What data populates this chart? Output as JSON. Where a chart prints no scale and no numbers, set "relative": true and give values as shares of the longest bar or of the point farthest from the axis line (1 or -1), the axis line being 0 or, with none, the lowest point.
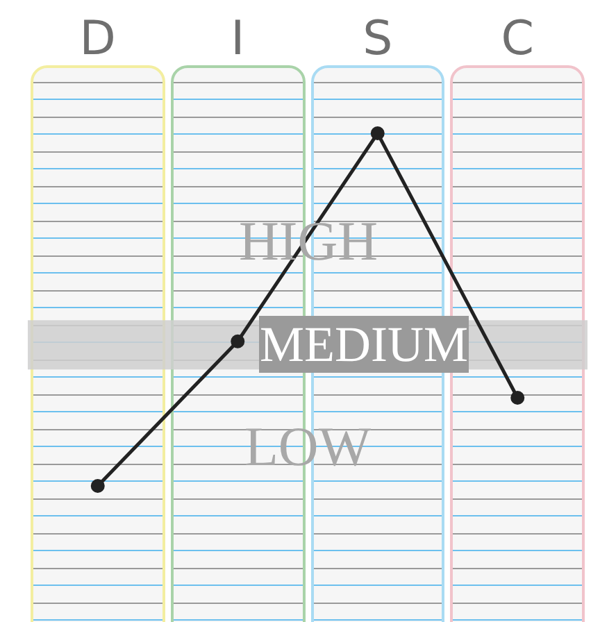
{
  "chart_data": {
    "type": "line",
    "relative": true,
    "categories": [
      "D",
      "I",
      "S",
      "C"
    ],
    "series": [
      {
        "color": "#222222",
        "values": [
          0,
          0.41,
          1,
          0.25
        ]
      }
    ],
    "marker": "circle",
    "line_style": "solid",
    "bands": [
      {
        "axis": "y",
        "from": 0.33,
        "to": 0.47,
        "label": "MEDIUM",
        "color": "#cfcfcf"
      }
    ],
    "annotations": [
      "HIGH",
      "LOW"
    ]
  }
}
